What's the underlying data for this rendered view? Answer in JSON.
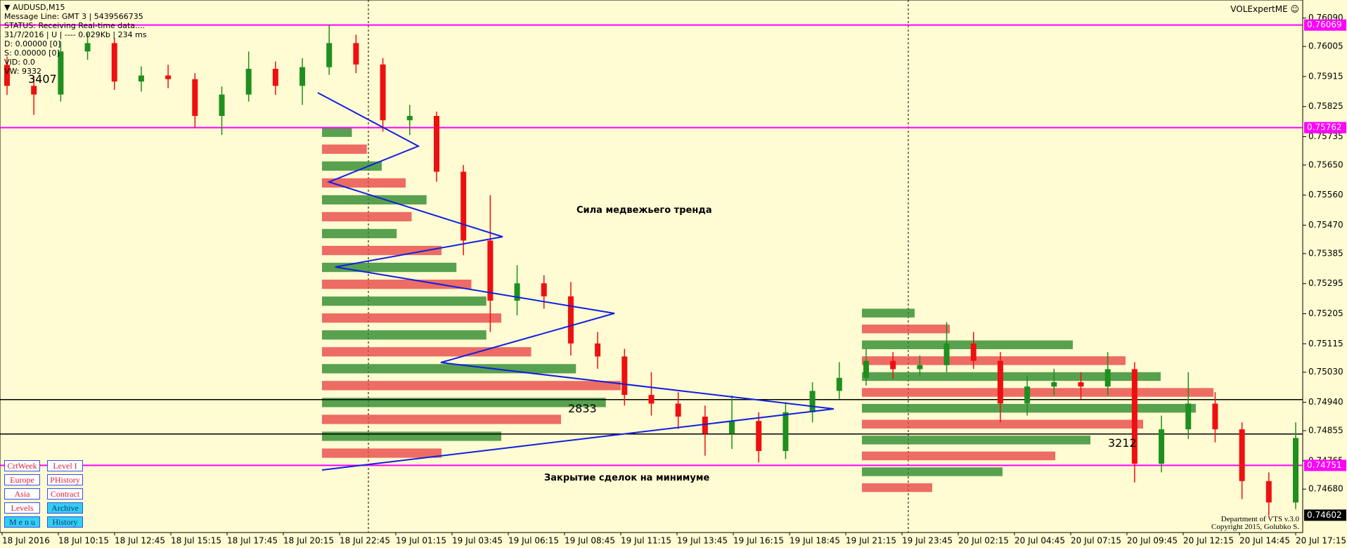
{
  "header": {
    "symbol": "AUDUSD,M15",
    "lines": [
      "Message Line: GMT 3 | 5439566735",
      "STATUS:  Receiving Real-time data....",
      "31/7/2016 | U | ---- 0.029Kb | 234 ms",
      "D: 0.00000  [0]",
      "S: 0.00000  [0]",
      "VID: 0.0",
      "VW: 9332"
    ],
    "brand": "VOLExpertME"
  },
  "annotations": {
    "bear": "Сила медвежьего тренда",
    "close": "Закрытие сделок на минимуме",
    "vol1": "3407",
    "vol2": "2833",
    "vol3": "3212"
  },
  "buttons": [
    "CrtWeek",
    "Level I",
    "Europe",
    "PHistory",
    "Asia",
    "Contract",
    "Levels",
    "Archive",
    "M e n u",
    "History"
  ],
  "footer": [
    "Department of VTS  v.3.0",
    "Copyright 2015, Golubko S."
  ],
  "chart_data": {
    "type": "candlestick",
    "up_color": "#1f8f1f",
    "down_color": "#ee1010",
    "ylim": [
      0.7455,
      0.76144
    ],
    "yticks": [
      {
        "value": 0.7609,
        "label": "0.76090"
      },
      0.76005,
      0.75915,
      0.75825,
      0.75735,
      {
        "value": 0.7565,
        "label": "0.75650"
      },
      {
        "value": 0.7556,
        "label": "0.75560"
      },
      {
        "value": 0.7547,
        "label": "0.75470"
      },
      0.75385,
      0.75295,
      0.75205,
      0.75115,
      {
        "value": 0.7503,
        "label": "0.75030"
      },
      {
        "value": 0.7494,
        "label": "0.74940"
      },
      0.74855,
      0.74765,
      {
        "value": 0.7468,
        "label": "0.74680"
      }
    ],
    "xticks": [
      "18 Jul 2016",
      "18 Jul 10:15",
      "18 Jul 12:45",
      "18 Jul 15:15",
      "18 Jul 17:45",
      "18 Jul 20:15",
      "18 Jul 22:45",
      "19 Jul 01:15",
      "19 Jul 03:45",
      "19 Jul 06:15",
      "19 Jul 08:45",
      "19 Jul 11:15",
      "19 Jul 13:45",
      "19 Jul 16:15",
      "19 Jul 18:45",
      "19 Jul 21:15",
      "19 Jul 23:45",
      "20 Jul 02:15",
      "20 Jul 04:45",
      "20 Jul 07:15",
      "20 Jul 09:45",
      "20 Jul 12:15",
      "20 Jul 14:45",
      "20 Jul 17:15"
    ],
    "open": [
      0.7595,
      0.75887,
      0.75861,
      0.7599,
      0.76015,
      0.759,
      0.75918,
      0.75907,
      0.75797,
      0.75861,
      0.75938,
      0.75887,
      0.75943,
      0.76015,
      0.75951,
      0.75784,
      0.75797,
      0.7563,
      0.75424,
      0.75244,
      0.75296,
      0.75257,
      0.75116,
      0.75077,
      0.74962,
      0.74936,
      0.74897,
      0.74846,
      0.74884,
      0.74794,
      0.7491,
      0.74974,
      0.75013,
      0.75064,
      0.75039,
      0.75051,
      0.75116,
      0.75064,
      0.74936,
      0.74987,
      0.75,
      0.74987,
      0.75039,
      0.74756,
      0.74859,
      0.74936,
      0.74859,
      0.74704,
      0.7464
    ],
    "high": [
      0.75975,
      0.75915,
      0.7602,
      0.76045,
      0.7603,
      0.75945,
      0.7595,
      0.75925,
      0.75885,
      0.7599,
      0.7596,
      0.7597,
      0.7607,
      0.7604,
      0.7597,
      0.7583,
      0.7581,
      0.7565,
      0.7556,
      0.7535,
      0.7532,
      0.753,
      0.7515,
      0.751,
      0.7503,
      0.7497,
      0.7493,
      0.7496,
      0.7491,
      0.7494,
      0.75,
      0.7506,
      0.751,
      0.7509,
      0.7508,
      0.7518,
      0.7515,
      0.7509,
      0.7502,
      0.7504,
      0.7503,
      0.7509,
      0.7506,
      0.749,
      0.7503,
      0.7497,
      0.7488,
      0.7473,
      0.7488
    ],
    "low": [
      0.7586,
      0.758,
      0.7584,
      0.75965,
      0.75875,
      0.7587,
      0.7588,
      0.7576,
      0.7574,
      0.7584,
      0.7586,
      0.7583,
      0.7592,
      0.75925,
      0.7575,
      0.7574,
      0.756,
      0.7538,
      0.7515,
      0.752,
      0.7522,
      0.7508,
      0.7504,
      0.7493,
      0.749,
      0.7486,
      0.7478,
      0.748,
      0.7476,
      0.7477,
      0.7488,
      0.7495,
      0.7499,
      0.7501,
      0.7502,
      0.7503,
      0.7504,
      0.7488,
      0.749,
      0.7496,
      0.7495,
      0.7496,
      0.747,
      0.7473,
      0.7483,
      0.7482,
      0.7465,
      0.746,
      0.7462
    ],
    "close": [
      0.75887,
      0.75861,
      0.7599,
      0.76015,
      0.759,
      0.75918,
      0.75907,
      0.75797,
      0.75861,
      0.75938,
      0.75887,
      0.75943,
      0.76015,
      0.75951,
      0.75784,
      0.75797,
      0.7563,
      0.75424,
      0.75244,
      0.75296,
      0.75257,
      0.75116,
      0.75077,
      0.74962,
      0.74936,
      0.74897,
      0.74846,
      0.74884,
      0.74794,
      0.7491,
      0.74974,
      0.75013,
      0.75064,
      0.75039,
      0.75051,
      0.75116,
      0.75064,
      0.74936,
      0.74987,
      0.75,
      0.74987,
      0.75039,
      0.74756,
      0.74859,
      0.74936,
      0.74859,
      0.74704,
      0.7464,
      0.74833
    ],
    "levels": [
      0.76069,
      0.75762,
      0.74751
    ],
    "level_color": "#ff00ff",
    "lines": [
      0.74948,
      0.74845
    ],
    "current_price": 0.74602,
    "profile_colors": [
      "#2e8b2e",
      "#e84848"
    ],
    "profiles": [
      {
        "range": [
          0.74751,
          0.75762
        ],
        "values": [
          10,
          15,
          20,
          28,
          35,
          30,
          25,
          40,
          45,
          50,
          55,
          60,
          55,
          70,
          85,
          100,
          95,
          80,
          60,
          40
        ]
      },
      {
        "range": [
          0.7465,
          0.7522
        ],
        "values": [
          15,
          25,
          60,
          75,
          85,
          100,
          95,
          80,
          65,
          55,
          40,
          20
        ]
      }
    ]
  }
}
